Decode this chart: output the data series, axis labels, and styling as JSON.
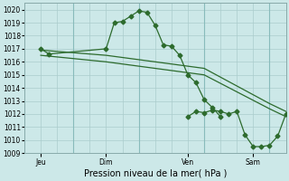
{
  "xlabel": "Pression niveau de la mer( hPa )",
  "bg_color": "#cce8e8",
  "grid_color": "#aacccc",
  "line_color": "#2d6b2d",
  "ylim": [
    1009,
    1020.5
  ],
  "yticks": [
    1009,
    1010,
    1011,
    1012,
    1013,
    1014,
    1015,
    1016,
    1017,
    1018,
    1019,
    1020
  ],
  "xlim": [
    0,
    96
  ],
  "day_ticks": [
    6,
    30,
    60,
    84
  ],
  "day_labels": [
    "Jeu",
    "Dim",
    "Ven",
    "Sam"
  ],
  "day_vlines": [
    18,
    42,
    66,
    90
  ],
  "series1_x": [
    6,
    9,
    30,
    33,
    36,
    39,
    42,
    45,
    48,
    51,
    54,
    57,
    60,
    63,
    66,
    69,
    72
  ],
  "series1_y": [
    1017.0,
    1016.6,
    1017.0,
    1019.0,
    1019.1,
    1019.5,
    1019.9,
    1019.8,
    1018.8,
    1017.3,
    1017.2,
    1016.5,
    1015.0,
    1014.4,
    1013.1,
    1012.5,
    1011.8
  ],
  "series2_x": [
    6,
    30,
    66,
    90,
    96
  ],
  "series2_y": [
    1016.9,
    1016.5,
    1015.5,
    1012.8,
    1012.2
  ],
  "series3_x": [
    6,
    30,
    66,
    90,
    96
  ],
  "series3_y": [
    1016.5,
    1016.0,
    1015.0,
    1012.4,
    1011.8
  ],
  "series4_x": [
    60,
    63,
    66,
    69,
    72,
    75,
    78,
    81,
    84,
    87,
    90,
    93,
    96
  ],
  "series4_y": [
    1011.8,
    1012.2,
    1012.1,
    1012.3,
    1012.2,
    1012.0,
    1012.2,
    1010.4,
    1009.5,
    1009.5,
    1009.6,
    1010.3,
    1012.0
  ],
  "xlabel_fontsize": 7,
  "tick_fontsize": 5.5,
  "marker_size": 2.5,
  "line_width": 0.9
}
